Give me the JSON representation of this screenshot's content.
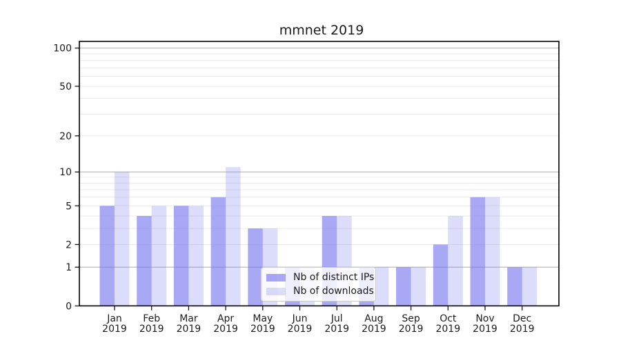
{
  "chart_data": {
    "type": "bar",
    "title": "mmnet 2019",
    "categories": [
      "Jan",
      "Feb",
      "Mar",
      "Apr",
      "May",
      "Jun",
      "Jul",
      "Aug",
      "Sep",
      "Oct",
      "Nov",
      "Dec"
    ],
    "x_tick_second_line": "2019",
    "series": [
      {
        "name": "Nb of distinct IPs",
        "fill": "rgba(116,115,239,0.62)",
        "values": [
          5,
          4,
          5,
          6,
          3,
          1,
          4,
          1,
          1,
          2,
          6,
          1
        ]
      },
      {
        "name": "Nb of downloads",
        "fill": "rgba(116,115,239,0.25)",
        "values": [
          10,
          5,
          5,
          11,
          3,
          1,
          4,
          1,
          1,
          4,
          6,
          1
        ]
      }
    ],
    "xlabel": "",
    "ylabel": "",
    "yscale": "log1p",
    "ylim": [
      0,
      113
    ],
    "yticks": [
      0,
      1,
      2,
      5,
      10,
      20,
      50,
      100
    ],
    "gridlines": {
      "major": [
        1,
        10,
        100
      ],
      "minor": [
        2,
        3,
        4,
        5,
        6,
        7,
        8,
        9,
        20,
        30,
        40,
        50,
        60,
        70,
        80,
        90
      ]
    },
    "legend_position": "lower center",
    "grid": true,
    "colors": {
      "background": "#ffffff",
      "major_grid": "#b4b4b4",
      "minor_grid": "#e9e9e9",
      "spine": "#000000",
      "text": "#1a1a1a",
      "legend_bg": "rgba(255,255,255,0.8)",
      "legend_border": "#cccccc"
    }
  }
}
